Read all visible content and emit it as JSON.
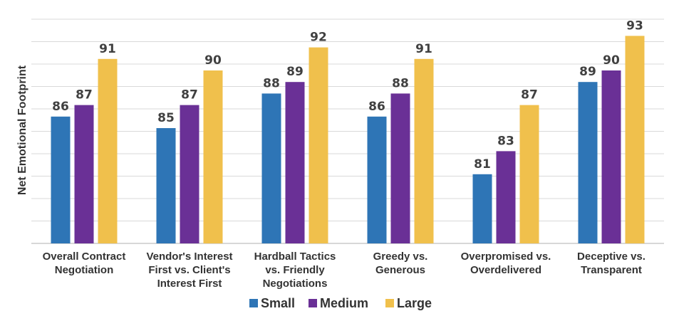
{
  "chart_data": {
    "type": "bar",
    "ylabel": "Net Emotional Footprint",
    "ylim": [
      75,
      95
    ],
    "grid": true,
    "legend_position": "bottom",
    "categories": [
      [
        "Overall Contract",
        "Negotiation"
      ],
      [
        "Vendor's Interest",
        "First vs. Client's",
        "Interest First"
      ],
      [
        "Hardball Tactics",
        "vs. Friendly",
        "Negotiations"
      ],
      [
        "Greedy vs.",
        "Generous"
      ],
      [
        "Overpromised vs.",
        "Overdelivered"
      ],
      [
        "Deceptive vs.",
        "Transparent"
      ]
    ],
    "series": [
      {
        "name": "Small",
        "color": "#2e75b6",
        "values": [
          86,
          85,
          88,
          86,
          81,
          89
        ]
      },
      {
        "name": "Medium",
        "color": "#6a3096",
        "values": [
          87,
          87,
          89,
          88,
          83,
          90
        ]
      },
      {
        "name": "Large",
        "color": "#f0c04c",
        "values": [
          91,
          90,
          92,
          91,
          87,
          93
        ]
      }
    ]
  }
}
